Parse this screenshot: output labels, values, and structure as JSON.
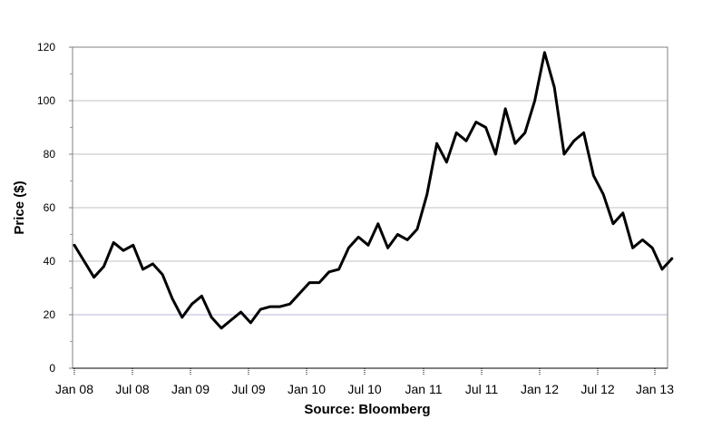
{
  "chart_data": {
    "type": "line",
    "title": "",
    "xlabel": "Source: Bloomberg",
    "ylabel": "Price ($)",
    "ylim": [
      0,
      120
    ],
    "yticks": [
      0,
      20,
      40,
      60,
      80,
      100,
      120
    ],
    "xlim": [
      "Jan 08",
      "Feb 13"
    ],
    "xtick_labels": [
      "Jan 08",
      "Jul 08",
      "Jan 09",
      "Jul 09",
      "Jan 10",
      "Jul 10",
      "Jan 11",
      "Jul 11",
      "Jan 12",
      "Jul 12",
      "Jan 13"
    ],
    "grid": "horizontal",
    "legend": "none",
    "colors": {
      "line": "#000000",
      "grid": "#c0c0c0",
      "axis": "#808080",
      "axis_zero": "#000000"
    },
    "series": [
      {
        "name": "",
        "x": [
          "Jan 08",
          "Feb 08",
          "Mar 08",
          "Apr 08",
          "May 08",
          "Jun 08",
          "Jul 08",
          "Aug 08",
          "Sep 08",
          "Oct 08",
          "Nov 08",
          "Dec 08",
          "Jan 09",
          "Feb 09",
          "Mar 09",
          "Apr 09",
          "May 09",
          "Jun 09",
          "Jul 09",
          "Aug 09",
          "Sep 09",
          "Oct 09",
          "Nov 09",
          "Dec 09",
          "Jan 10",
          "Feb 10",
          "Mar 10",
          "Apr 10",
          "May 10",
          "Jun 10",
          "Jul 10",
          "Aug 10",
          "Sep 10",
          "Oct 10",
          "Nov 10",
          "Dec 10",
          "Jan 11",
          "Feb 11",
          "Mar 11",
          "Apr 11",
          "May 11",
          "Jun 11",
          "Jul 11",
          "Aug 11",
          "Sep 11",
          "Oct 11",
          "Nov 11",
          "Dec 11",
          "Jan 12",
          "Feb 12",
          "Mar 12",
          "Apr 12",
          "May 12",
          "Jun 12",
          "Jul 12",
          "Aug 12",
          "Sep 12",
          "Oct 12",
          "Nov 12",
          "Dec 12",
          "Jan 13",
          "Feb 13"
        ],
        "values": [
          46,
          40,
          34,
          38,
          47,
          44,
          46,
          37,
          39,
          35,
          26,
          19,
          24,
          27,
          19,
          15,
          18,
          21,
          17,
          22,
          23,
          23,
          24,
          28,
          32,
          32,
          36,
          37,
          45,
          49,
          46,
          54,
          45,
          50,
          48,
          52,
          65,
          84,
          77,
          88,
          85,
          92,
          90,
          80,
          97,
          84,
          88,
          100,
          118,
          105,
          80,
          85,
          88,
          72,
          65,
          54,
          58,
          45,
          48,
          45,
          37,
          41
        ]
      }
    ]
  }
}
